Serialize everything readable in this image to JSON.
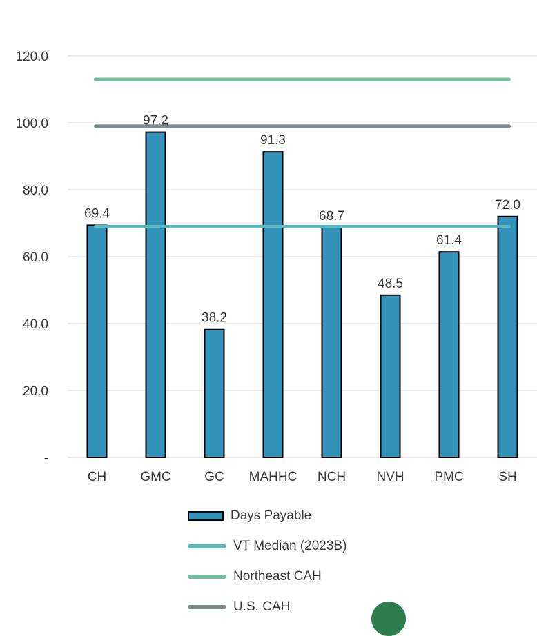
{
  "chart_data": {
    "type": "bar",
    "categories": [
      "CH",
      "GMC",
      "GC",
      "MAHHC",
      "NCH",
      "NVH",
      "PMC",
      "SH"
    ],
    "series": [
      {
        "name": "Days Payable",
        "values": [
          69.4,
          97.2,
          38.2,
          91.3,
          68.7,
          48.5,
          61.4,
          72.0
        ],
        "color": "#3493bb"
      }
    ],
    "data_labels": [
      "69.4",
      "97.2",
      "38.2",
      "91.3",
      "68.7",
      "48.5",
      "61.4",
      "72.0"
    ],
    "reference_lines": [
      {
        "name": "VT Median (2023B)",
        "value": 69.0,
        "color": "#5ab9c0"
      },
      {
        "name": "Northeast CAH",
        "value": 113.0,
        "color": "#6fbf9c"
      },
      {
        "name": "U.S. CAH",
        "value": 99.0,
        "color": "#7d8c8f"
      }
    ],
    "y_ticks": [
      {
        "value": 0,
        "label": "-"
      },
      {
        "value": 20,
        "label": "20.0"
      },
      {
        "value": 40,
        "label": "40.0"
      },
      {
        "value": 60,
        "label": "60.0"
      },
      {
        "value": 80,
        "label": "80.0"
      },
      {
        "value": 100,
        "label": "100.0"
      },
      {
        "value": 120,
        "label": "120.0"
      }
    ],
    "ylim": [
      0,
      120
    ],
    "grid": true,
    "legend_position": "bottom"
  }
}
